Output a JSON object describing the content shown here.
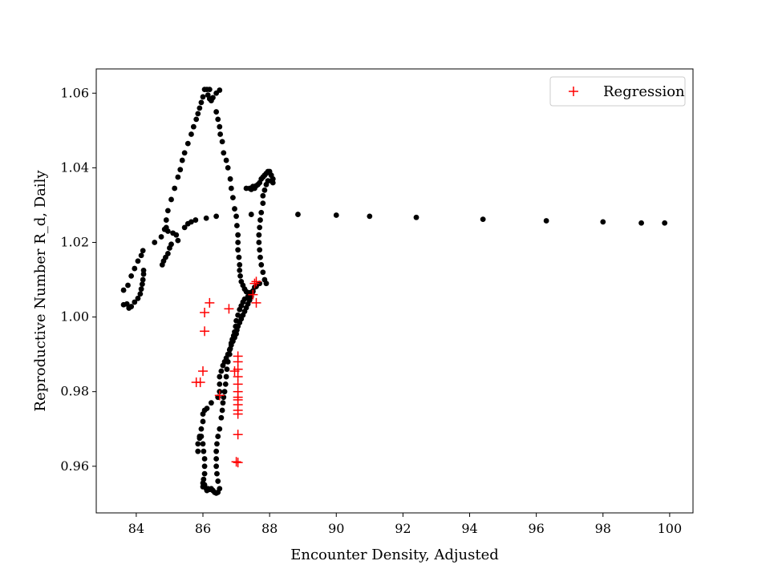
{
  "chart_data": {
    "type": "scatter",
    "title": "",
    "xlabel": "Encounter Density, Adjusted",
    "ylabel": "Reproductive Number R_d, Daily",
    "xlim": [
      82.8,
      100.7
    ],
    "ylim": [
      0.9475,
      1.0665
    ],
    "xticks": [
      84,
      86,
      88,
      90,
      92,
      94,
      96,
      98,
      100
    ],
    "yticks": [
      0.96,
      0.98,
      1.0,
      1.02,
      1.04,
      1.06
    ],
    "ytick_labels": [
      "0.96",
      "0.98",
      "1.00",
      "1.02",
      "1.04",
      "1.06"
    ],
    "grid": false,
    "legend": {
      "placement": "top-right",
      "entries": [
        "Regression"
      ]
    },
    "colors": {
      "observed": "#000000",
      "regression": "#ff0000"
    },
    "series": [
      {
        "marker": "dot",
        "color": "#000000",
        "points": [
          [
            83.62,
            1.0072
          ],
          [
            83.62,
            1.0033
          ],
          [
            83.72,
            1.0035
          ],
          [
            83.78,
            1.0024
          ],
          [
            83.85,
            1.0028
          ],
          [
            83.95,
            1.004
          ],
          [
            84.05,
            1.005
          ],
          [
            84.12,
            1.0062
          ],
          [
            84.15,
            1.0075
          ],
          [
            84.18,
            1.0088
          ],
          [
            84.2,
            1.01
          ],
          [
            84.22,
            1.0115
          ],
          [
            84.22,
            1.0125
          ],
          [
            83.75,
            1.0085
          ],
          [
            83.85,
            1.011
          ],
          [
            83.95,
            1.013
          ],
          [
            84.05,
            1.015
          ],
          [
            84.15,
            1.0165
          ],
          [
            84.2,
            1.0178
          ],
          [
            84.55,
            1.02
          ],
          [
            84.75,
            1.0215
          ],
          [
            84.85,
            1.0235
          ],
          [
            84.9,
            1.026
          ],
          [
            84.95,
            1.0285
          ],
          [
            85.05,
            1.0315
          ],
          [
            85.15,
            1.0345
          ],
          [
            85.25,
            1.0375
          ],
          [
            85.32,
            1.0395
          ],
          [
            85.38,
            1.042
          ],
          [
            85.45,
            1.044
          ],
          [
            85.55,
            1.0465
          ],
          [
            85.65,
            1.049
          ],
          [
            85.72,
            1.051
          ],
          [
            85.8,
            1.053
          ],
          [
            85.85,
            1.0545
          ],
          [
            85.9,
            1.056
          ],
          [
            85.95,
            1.0575
          ],
          [
            86.0,
            1.059
          ],
          [
            86.05,
            1.061
          ],
          [
            86.12,
            1.061
          ],
          [
            86.2,
            1.061
          ],
          [
            86.15,
            1.0595
          ],
          [
            86.2,
            1.0585
          ],
          [
            86.25,
            1.058
          ],
          [
            86.3,
            1.0588
          ],
          [
            86.4,
            1.06
          ],
          [
            86.5,
            1.0608
          ],
          [
            86.4,
            1.055
          ],
          [
            86.45,
            1.053
          ],
          [
            86.5,
            1.051
          ],
          [
            86.52,
            1.049
          ],
          [
            86.58,
            1.047
          ],
          [
            86.62,
            1.044
          ],
          [
            86.7,
            1.042
          ],
          [
            86.75,
            1.04
          ],
          [
            86.82,
            1.037
          ],
          [
            86.85,
            1.0345
          ],
          [
            86.9,
            1.032
          ],
          [
            86.95,
            1.029
          ],
          [
            87.0,
            1.027
          ],
          [
            87.02,
            1.0245
          ],
          [
            87.05,
            1.022
          ],
          [
            87.05,
            1.02
          ],
          [
            87.05,
            1.018
          ],
          [
            87.08,
            1.016
          ],
          [
            87.1,
            1.014
          ],
          [
            87.1,
            1.0125
          ],
          [
            87.12,
            1.011
          ],
          [
            87.15,
            1.0095
          ],
          [
            87.2,
            1.0085
          ],
          [
            87.25,
            1.0075
          ],
          [
            87.3,
            1.0068
          ],
          [
            87.4,
            1.0065
          ],
          [
            87.5,
            1.0068
          ],
          [
            87.55,
            1.008
          ],
          [
            84.9,
            1.024
          ],
          [
            84.95,
            1.023
          ],
          [
            85.1,
            1.0225
          ],
          [
            85.2,
            1.022
          ],
          [
            85.25,
            1.0205
          ],
          [
            85.05,
            1.0195
          ],
          [
            85.0,
            1.0185
          ],
          [
            84.95,
            1.017
          ],
          [
            84.88,
            1.016
          ],
          [
            84.82,
            1.015
          ],
          [
            84.78,
            1.014
          ],
          [
            85.45,
            1.024
          ],
          [
            85.55,
            1.025
          ],
          [
            85.65,
            1.0255
          ],
          [
            85.78,
            1.026
          ],
          [
            86.1,
            1.0265
          ],
          [
            86.4,
            1.027
          ],
          [
            87.3,
            1.0345
          ],
          [
            87.4,
            1.0345
          ],
          [
            87.45,
            1.0342
          ],
          [
            87.5,
            1.035
          ],
          [
            87.55,
            1.0345
          ],
          [
            87.6,
            1.0352
          ],
          [
            87.65,
            1.0355
          ],
          [
            87.7,
            1.036
          ],
          [
            87.75,
            1.037
          ],
          [
            87.8,
            1.0375
          ],
          [
            87.85,
            1.038
          ],
          [
            87.9,
            1.0385
          ],
          [
            87.95,
            1.039
          ],
          [
            88.0,
            1.039
          ],
          [
            88.05,
            1.038
          ],
          [
            88.1,
            1.037
          ],
          [
            88.1,
            1.036
          ],
          [
            88.05,
            1.0365
          ],
          [
            87.95,
            1.0365
          ],
          [
            87.9,
            1.0355
          ],
          [
            87.85,
            1.034
          ],
          [
            87.8,
            1.0325
          ],
          [
            87.8,
            1.0305
          ],
          [
            87.75,
            1.028
          ],
          [
            87.72,
            1.026
          ],
          [
            87.7,
            1.024
          ],
          [
            87.68,
            1.022
          ],
          [
            87.68,
            1.02
          ],
          [
            87.7,
            1.018
          ],
          [
            87.72,
            1.016
          ],
          [
            87.75,
            1.014
          ],
          [
            87.8,
            1.012
          ],
          [
            87.85,
            1.01
          ],
          [
            87.9,
            1.009
          ],
          [
            87.45,
            1.0275
          ],
          [
            88.85,
            1.0275
          ],
          [
            90.0,
            1.0273
          ],
          [
            91.0,
            1.027
          ],
          [
            92.4,
            1.0267
          ],
          [
            94.4,
            1.0262
          ],
          [
            96.3,
            1.0258
          ],
          [
            98.0,
            1.0255
          ],
          [
            99.15,
            1.0252
          ],
          [
            99.85,
            1.0252
          ],
          [
            87.45,
            1.0065
          ],
          [
            87.4,
            1.006
          ],
          [
            87.35,
            1.0055
          ],
          [
            87.25,
            1.0048
          ],
          [
            87.2,
            1.004
          ],
          [
            87.15,
            1.003
          ],
          [
            87.1,
            1.002
          ],
          [
            87.05,
            1.0005
          ],
          [
            87.0,
            0.999
          ],
          [
            86.98,
            0.9975
          ],
          [
            86.95,
            0.996
          ],
          [
            86.92,
            0.995
          ],
          [
            86.88,
            0.994
          ],
          [
            86.85,
            0.993
          ],
          [
            86.82,
            0.9915
          ],
          [
            86.8,
            0.99
          ],
          [
            86.75,
            0.988
          ],
          [
            86.72,
            0.986
          ],
          [
            86.7,
            0.984
          ],
          [
            86.68,
            0.982
          ],
          [
            86.65,
            0.98
          ],
          [
            86.62,
            0.9785
          ],
          [
            86.6,
            0.977
          ],
          [
            86.58,
            0.975
          ],
          [
            86.55,
            0.973
          ],
          [
            86.5,
            0.97
          ],
          [
            86.45,
            0.968
          ],
          [
            86.42,
            0.966
          ],
          [
            86.4,
            0.964
          ],
          [
            86.4,
            0.962
          ],
          [
            86.4,
            0.96
          ],
          [
            86.42,
            0.958
          ],
          [
            86.45,
            0.956
          ],
          [
            86.5,
            0.954
          ],
          [
            86.45,
            0.953
          ],
          [
            86.4,
            0.9528
          ],
          [
            86.35,
            0.953
          ],
          [
            86.3,
            0.9535
          ],
          [
            86.25,
            0.954
          ],
          [
            86.2,
            0.9538
          ],
          [
            86.15,
            0.954
          ],
          [
            86.12,
            0.9535
          ],
          [
            86.1,
            0.954
          ],
          [
            86.05,
            0.955
          ],
          [
            86.0,
            0.9545
          ],
          [
            86.0,
            0.9555
          ],
          [
            86.02,
            0.9565
          ],
          [
            86.05,
            0.958
          ],
          [
            86.05,
            0.96
          ],
          [
            86.05,
            0.962
          ],
          [
            86.02,
            0.964
          ],
          [
            86.0,
            0.966
          ],
          [
            85.95,
            0.968
          ],
          [
            85.9,
            0.9675
          ],
          [
            85.85,
            0.966
          ],
          [
            85.85,
            0.964
          ],
          [
            85.9,
            0.968
          ],
          [
            85.95,
            0.97
          ],
          [
            86.0,
            0.972
          ],
          [
            86.0,
            0.974
          ],
          [
            86.05,
            0.975
          ],
          [
            86.12,
            0.9755
          ],
          [
            86.25,
            0.977
          ],
          [
            86.45,
            0.9785
          ],
          [
            86.5,
            0.98
          ],
          [
            86.5,
            0.982
          ],
          [
            86.5,
            0.984
          ],
          [
            86.55,
            0.9855
          ],
          [
            86.6,
            0.987
          ],
          [
            86.65,
            0.988
          ],
          [
            86.7,
            0.989
          ],
          [
            86.75,
            0.99
          ],
          [
            86.8,
            0.9912
          ],
          [
            86.85,
            0.9925
          ],
          [
            86.9,
            0.9935
          ],
          [
            86.95,
            0.9945
          ],
          [
            87.0,
            0.9955
          ],
          [
            87.02,
            0.9965
          ],
          [
            87.05,
            0.9975
          ],
          [
            87.1,
            0.9985
          ],
          [
            87.15,
            0.9995
          ],
          [
            87.2,
            1.0005
          ],
          [
            87.25,
            1.0015
          ],
          [
            87.3,
            1.0025
          ],
          [
            87.35,
            1.0035
          ],
          [
            87.4,
            1.0045
          ],
          [
            87.45,
            1.0055
          ],
          [
            87.5,
            1.007
          ],
          [
            87.6,
            1.0082
          ],
          [
            87.7,
            1.009
          ]
        ]
      },
      {
        "name": "Regression",
        "marker": "plus",
        "color": "#ff0000",
        "points": [
          [
            85.8,
            0.9825
          ],
          [
            85.92,
            0.9825
          ],
          [
            86.0,
            0.9855
          ],
          [
            86.05,
            1.0012
          ],
          [
            86.05,
            0.9962
          ],
          [
            86.2,
            1.0038
          ],
          [
            86.5,
            0.979
          ],
          [
            86.78,
            1.0022
          ],
          [
            86.95,
            0.9855
          ],
          [
            87.05,
            0.9895
          ],
          [
            87.05,
            0.988
          ],
          [
            87.05,
            0.986
          ],
          [
            87.05,
            0.984
          ],
          [
            87.05,
            0.982
          ],
          [
            87.05,
            0.98
          ],
          [
            87.05,
            0.9785
          ],
          [
            87.05,
            0.9778
          ],
          [
            87.05,
            0.9765
          ],
          [
            87.05,
            0.975
          ],
          [
            87.05,
            0.974
          ],
          [
            87.05,
            0.9685
          ],
          [
            87.05,
            0.961
          ],
          [
            87.0,
            0.9612
          ],
          [
            87.5,
            1.006
          ],
          [
            87.6,
            1.0038
          ],
          [
            87.55,
            1.009
          ],
          [
            87.6,
            1.0095
          ]
        ]
      }
    ]
  }
}
